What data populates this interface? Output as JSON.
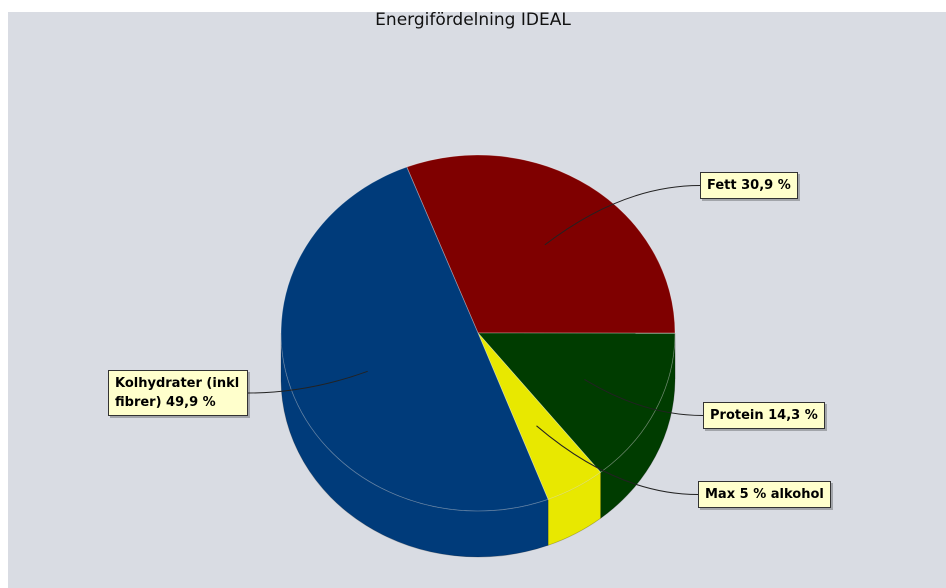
{
  "chart_data": {
    "type": "pie",
    "title": "Energifördelning IDEAL",
    "values": [
      30.9,
      14.3,
      4.9,
      49.9
    ],
    "value_labels": [
      "Fett 30,9 %",
      "Protein 14,3 %",
      "Max 5 % alkohol",
      "Kolhydrater (inkl fibrer) 49,9 %"
    ],
    "colors": [
      "#7f0000",
      "#003c00",
      "#e8e800",
      "#003b7a"
    ]
  }
}
